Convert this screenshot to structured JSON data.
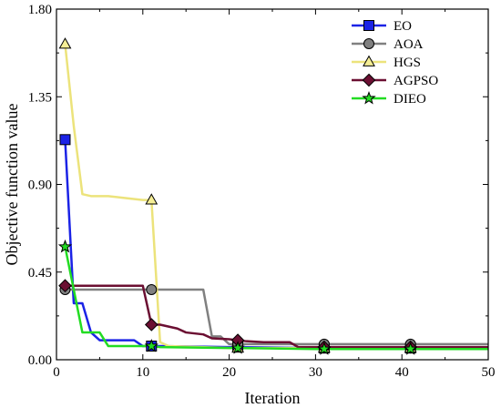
{
  "chart_data": {
    "type": "line",
    "xlabel": "Iteration",
    "ylabel": "Objective function value",
    "xlim": [
      0,
      50
    ],
    "ylim": [
      0,
      1.8
    ],
    "xticks": [
      "0",
      "10",
      "20",
      "30",
      "40",
      "50"
    ],
    "yticks": [
      "0.00",
      "0.45",
      "0.90",
      "1.35",
      "1.80"
    ],
    "legend_position": "top-right",
    "grid": false,
    "series": [
      {
        "name": "EO",
        "color": "#1b23e6",
        "marker": "square",
        "marker_fill": "#1b23e6",
        "points": [
          [
            1,
            1.13
          ],
          [
            2,
            0.29
          ],
          [
            3,
            0.29
          ],
          [
            4,
            0.14
          ],
          [
            5,
            0.1
          ],
          [
            6,
            0.1
          ],
          [
            7,
            0.1
          ],
          [
            8,
            0.1
          ],
          [
            9,
            0.1
          ],
          [
            10,
            0.07
          ],
          [
            11,
            0.07
          ],
          [
            12,
            0.07
          ],
          [
            20,
            0.065
          ],
          [
            21,
            0.065
          ],
          [
            30,
            0.06
          ],
          [
            31,
            0.06
          ],
          [
            40,
            0.06
          ],
          [
            41,
            0.06
          ],
          [
            50,
            0.06
          ]
        ],
        "marker_points": [
          [
            1,
            1.13
          ],
          [
            11,
            0.07
          ],
          [
            21,
            0.065
          ],
          [
            31,
            0.06
          ],
          [
            41,
            0.06
          ]
        ]
      },
      {
        "name": "AOA",
        "color": "#808080",
        "marker": "circle",
        "marker_fill": "#808080",
        "points": [
          [
            1,
            0.36
          ],
          [
            2,
            0.36
          ],
          [
            10,
            0.36
          ],
          [
            11,
            0.36
          ],
          [
            12,
            0.36
          ],
          [
            17,
            0.36
          ],
          [
            18,
            0.12
          ],
          [
            19,
            0.12
          ],
          [
            20,
            0.08
          ],
          [
            21,
            0.08
          ],
          [
            30,
            0.08
          ],
          [
            31,
            0.08
          ],
          [
            40,
            0.08
          ],
          [
            41,
            0.08
          ],
          [
            50,
            0.08
          ]
        ],
        "marker_points": [
          [
            1,
            0.36
          ],
          [
            11,
            0.36
          ],
          [
            21,
            0.08
          ],
          [
            31,
            0.08
          ],
          [
            41,
            0.08
          ]
        ]
      },
      {
        "name": "HGS",
        "color": "#ece37b",
        "marker": "triangle",
        "marker_fill": "#f5ee96",
        "points": [
          [
            1,
            1.62
          ],
          [
            2,
            1.2
          ],
          [
            3,
            0.85
          ],
          [
            4,
            0.84
          ],
          [
            6,
            0.84
          ],
          [
            8,
            0.83
          ],
          [
            10,
            0.82
          ],
          [
            11,
            0.82
          ],
          [
            12,
            0.09
          ],
          [
            13,
            0.07
          ],
          [
            20,
            0.06
          ],
          [
            21,
            0.06
          ],
          [
            30,
            0.06
          ],
          [
            31,
            0.06
          ],
          [
            40,
            0.06
          ],
          [
            41,
            0.06
          ],
          [
            50,
            0.06
          ]
        ],
        "marker_points": [
          [
            1,
            1.62
          ],
          [
            11,
            0.82
          ],
          [
            21,
            0.06
          ],
          [
            31,
            0.06
          ],
          [
            41,
            0.06
          ]
        ]
      },
      {
        "name": "AGPSO",
        "color": "#6b0f32",
        "marker": "diamond",
        "marker_fill": "#6b0f32",
        "points": [
          [
            1,
            0.38
          ],
          [
            2,
            0.38
          ],
          [
            10,
            0.38
          ],
          [
            11,
            0.18
          ],
          [
            12,
            0.18
          ],
          [
            14,
            0.16
          ],
          [
            15,
            0.14
          ],
          [
            17,
            0.13
          ],
          [
            18,
            0.11
          ],
          [
            20,
            0.105
          ],
          [
            21,
            0.1
          ],
          [
            22,
            0.095
          ],
          [
            24,
            0.09
          ],
          [
            27,
            0.09
          ],
          [
            28,
            0.065
          ],
          [
            31,
            0.065
          ],
          [
            40,
            0.065
          ],
          [
            41,
            0.065
          ],
          [
            50,
            0.065
          ]
        ],
        "marker_points": [
          [
            1,
            0.38
          ],
          [
            11,
            0.18
          ],
          [
            21,
            0.1
          ],
          [
            31,
            0.065
          ],
          [
            41,
            0.065
          ]
        ]
      },
      {
        "name": "DIEO",
        "color": "#22dc22",
        "marker": "star",
        "marker_fill": "#22dc22",
        "points": [
          [
            1,
            0.58
          ],
          [
            2,
            0.36
          ],
          [
            3,
            0.14
          ],
          [
            4,
            0.14
          ],
          [
            5,
            0.14
          ],
          [
            6,
            0.07
          ],
          [
            7,
            0.07
          ],
          [
            10,
            0.07
          ],
          [
            11,
            0.07
          ],
          [
            12,
            0.065
          ],
          [
            20,
            0.06
          ],
          [
            21,
            0.06
          ],
          [
            30,
            0.055
          ],
          [
            31,
            0.055
          ],
          [
            40,
            0.055
          ],
          [
            41,
            0.055
          ],
          [
            50,
            0.055
          ]
        ],
        "marker_points": [
          [
            1,
            0.58
          ],
          [
            11,
            0.07
          ],
          [
            21,
            0.06
          ],
          [
            31,
            0.055
          ],
          [
            41,
            0.055
          ]
        ]
      }
    ]
  }
}
